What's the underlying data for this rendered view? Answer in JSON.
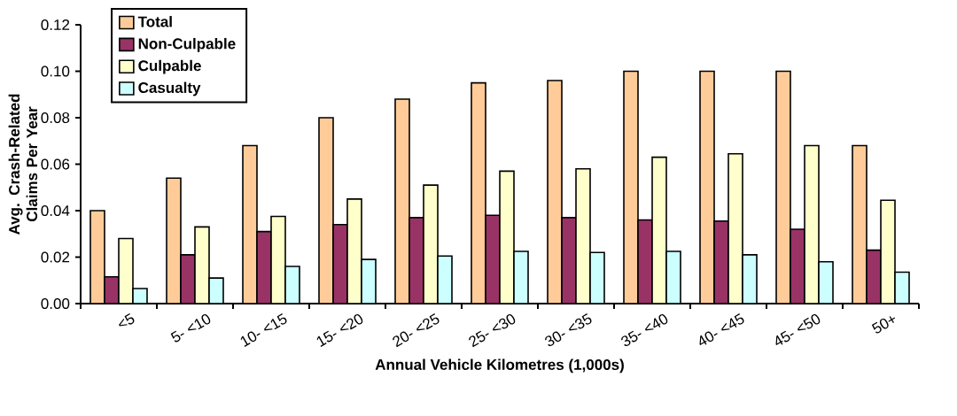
{
  "chart_data": {
    "type": "bar",
    "xlabel": "Annual Vehicle Kilometres (1,000s)",
    "ylabel": "Avg. Crash-Related Claims Per Year",
    "categories": [
      "<5",
      "5- <10",
      "10- <15",
      "15- <20",
      "20- <25",
      "25- <30",
      "30- <35",
      "35- <40",
      "40- <45",
      "45- <50",
      "50+"
    ],
    "series": [
      {
        "name": "Total",
        "color": "#ffcc99",
        "values": [
          0.04,
          0.054,
          0.068,
          0.08,
          0.088,
          0.095,
          0.096,
          0.1,
          0.1,
          0.1,
          0.068
        ]
      },
      {
        "name": "Non-Culpable",
        "color": "#993366",
        "values": [
          0.0115,
          0.021,
          0.031,
          0.034,
          0.037,
          0.038,
          0.037,
          0.036,
          0.0355,
          0.032,
          0.023
        ]
      },
      {
        "name": "Culpable",
        "color": "#ffffcc",
        "values": [
          0.028,
          0.033,
          0.0375,
          0.045,
          0.051,
          0.057,
          0.058,
          0.063,
          0.0645,
          0.068,
          0.0445
        ]
      },
      {
        "name": "Casualty",
        "color": "#ccffff",
        "values": [
          0.0065,
          0.011,
          0.016,
          0.019,
          0.0205,
          0.0225,
          0.022,
          0.0225,
          0.021,
          0.018,
          0.0135
        ]
      }
    ],
    "ylim": [
      0,
      0.12
    ],
    "yticks": [
      {
        "value": 0,
        "label": "0.00"
      },
      {
        "value": 0.02,
        "label": "0.02"
      },
      {
        "value": 0.04,
        "label": "0.04"
      },
      {
        "value": 0.06,
        "label": "0.06"
      },
      {
        "value": 0.08,
        "label": "0.08"
      },
      {
        "value": 0.1,
        "label": "0.10"
      },
      {
        "value": 0.12,
        "label": "0.12"
      }
    ],
    "legend": "top left"
  }
}
